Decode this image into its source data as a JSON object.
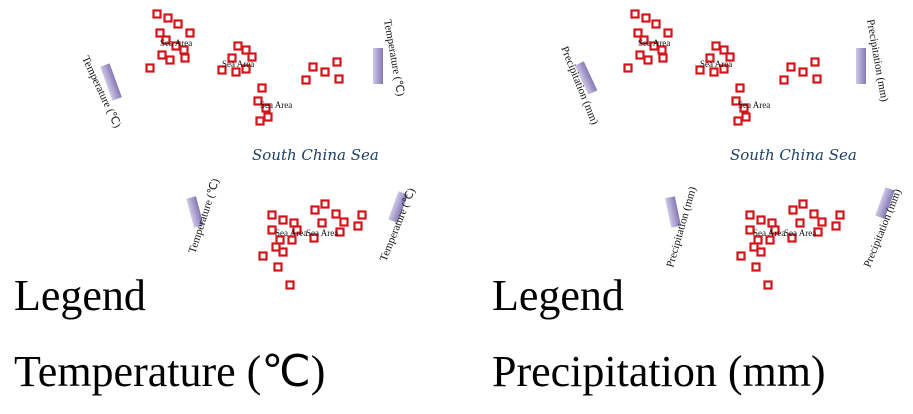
{
  "panels": [
    {
      "id": "temperature",
      "sea_name": "South China Sea",
      "axis_label": "Temperature (℃)",
      "area_labels": [
        "Sea Area",
        "Sea Area",
        "Sea Area",
        "Sea Area",
        "Sea Area"
      ],
      "legend_heading": "Legend",
      "legend_label": "Temperature (℃)"
    },
    {
      "id": "precipitation",
      "sea_name": "South China Sea",
      "axis_label": "Precipitation (mm)",
      "area_labels": [
        "Sea Area",
        "Sea Area",
        "Sea Area",
        "Sea Area",
        "Sea Area"
      ],
      "legend_heading": "Legend",
      "legend_label": "Precipitation (mm)"
    }
  ],
  "colors": {
    "marker": "#d4141a",
    "marker_fill": "#ffffff",
    "sea_name": "#1e3f66",
    "gauge_dark": "#8478b5",
    "gauge_light": "#cfc9e6"
  },
  "icons": {
    "marker": "station-marker-icon",
    "gauge": "gauge-bar-icon"
  }
}
